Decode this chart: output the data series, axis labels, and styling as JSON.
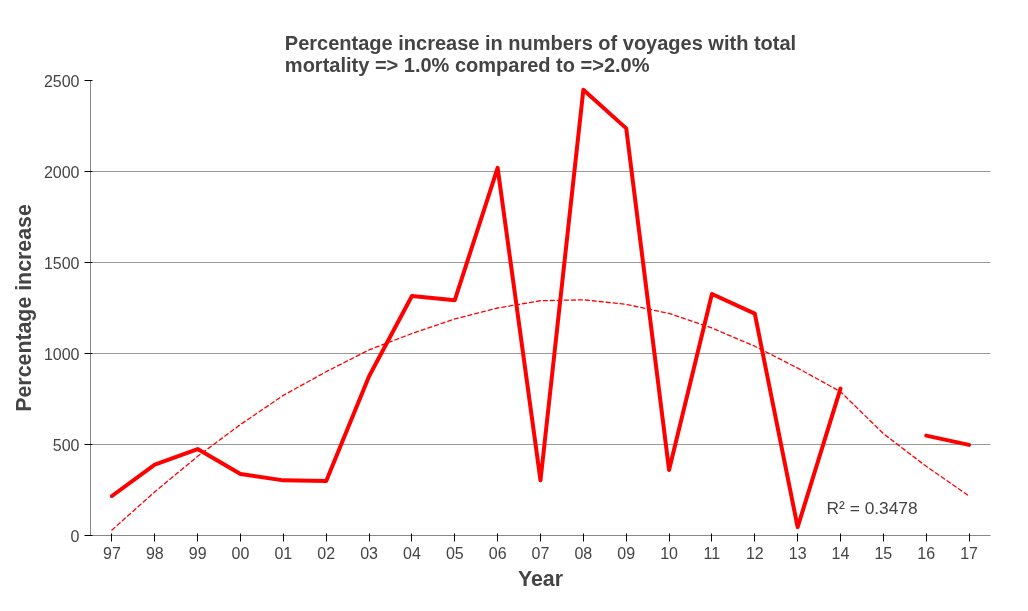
{
  "chart_data": {
    "type": "line",
    "title": "Percentage increase in numbers of voyages with total\nmortality => 1.0% compared to =>2.0%",
    "xlabel": "Year",
    "ylabel": "Percentage increase",
    "categories": [
      "97",
      "98",
      "99",
      "00",
      "01",
      "02",
      "03",
      "04",
      "05",
      "06",
      "07",
      "08",
      "09",
      "10",
      "11",
      "12",
      "13",
      "14",
      "15",
      "16",
      "17"
    ],
    "series": [
      {
        "color": "#ff0000",
        "values": [
          217,
          389,
          475,
          338,
          303,
          300,
          875,
          1316,
          1293,
          2020,
          303,
          2449,
          2237,
          360,
          1327,
          1219,
          46,
          807,
          null,
          549,
          498
        ]
      },
      {
        "type": "line",
        "line_style": "dashed",
        "color": "#ff0000",
        "values": [
          30,
          240,
          435,
          610,
          770,
          900,
          1020,
          1110,
          1190,
          1250,
          1290,
          1295,
          1270,
          1220,
          1140,
          1040,
          920,
          790,
          560,
          380,
          217
        ]
      }
    ],
    "ylim": [
      0,
      2500
    ],
    "yticks": [
      0,
      500,
      1000,
      1500,
      2000,
      2500
    ],
    "grid": "y",
    "marker": "none",
    "line_style": "solid",
    "annotations": [
      "R² = 0.3478"
    ]
  }
}
